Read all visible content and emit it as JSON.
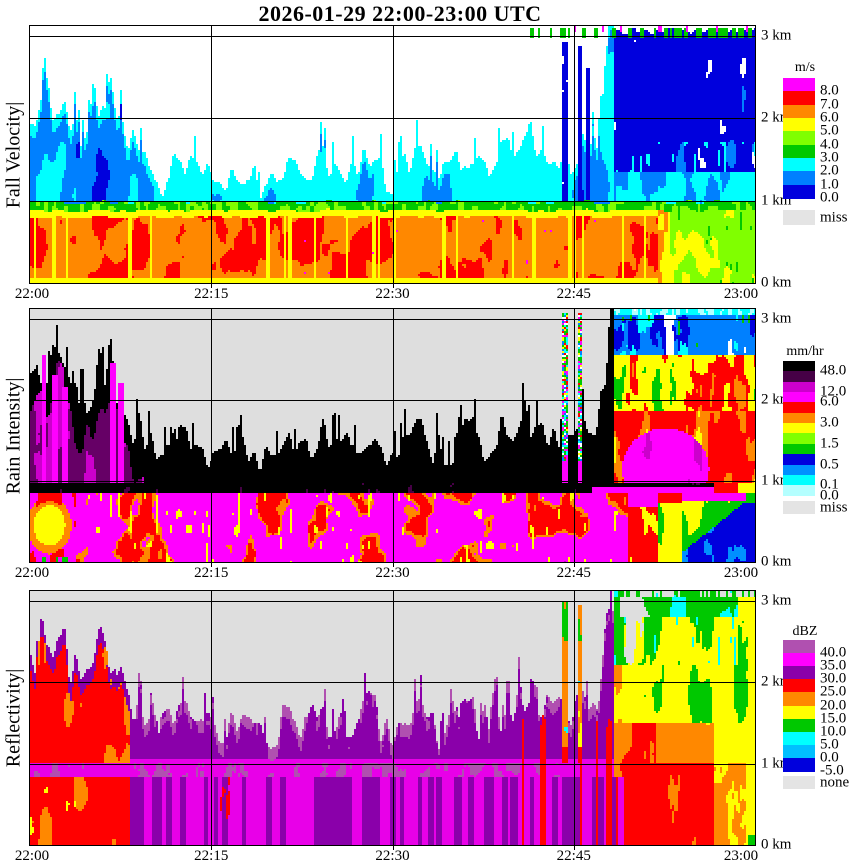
{
  "title": "2026-01-29  22:00-23:00 UTC",
  "palette": {
    "white": "#ffffff",
    "gray": "#dedede",
    "black": "#000000",
    "magenta": "#ff00ff",
    "brightmagenta": "#e800e8",
    "orchid": "#cc00cc",
    "purplecore": "#660066",
    "darkpurple": "#460046",
    "plum": "#b050b0",
    "violet": "#8a00aa",
    "red": "#ff0000",
    "orange": "#ff8800",
    "yellow": "#ffff00",
    "chartreuse": "#80ff00",
    "green": "#00c800",
    "cyan": "#00ffff",
    "palecyan": "#b4ffff",
    "dodger": "#0080ff",
    "skyblue": "#0090ff",
    "deepsky": "#00bfff",
    "blue": "#0000dd",
    "missgray": "#e4e4e4"
  },
  "chart_data": [
    {
      "type": "heatmap",
      "title": "Fall Velocity",
      "ylabel": "Fall Velocity|",
      "x_ticks": [
        {
          "minute": 0,
          "label": "22:00"
        },
        {
          "minute": 15,
          "label": "22:15"
        },
        {
          "minute": 30,
          "label": "22:30"
        },
        {
          "minute": 45,
          "label": "22:45"
        },
        {
          "minute": 60,
          "label": "23:00"
        }
      ],
      "y_ticks": [
        {
          "km": 0,
          "label": "0 km"
        },
        {
          "km": 1,
          "label": "1 km"
        },
        {
          "km": 2,
          "label": "2 km"
        },
        {
          "km": 3,
          "label": "3 km"
        }
      ],
      "y_range_km": [
        0,
        3.12
      ],
      "colorbar": {
        "units": "m/s",
        "cells": [
          "#ff00ff",
          "#ff0000",
          "#ff8800",
          "#ffff00",
          "#80ff00",
          "#00c800",
          "#00ffff",
          "#0080ff",
          "#0000dd"
        ],
        "tick_labels": [
          {
            "text": "8.0",
            "boundary": 1
          },
          {
            "text": "7.0",
            "boundary": 2
          },
          {
            "text": "6.0",
            "boundary": 3
          },
          {
            "text": "5.0",
            "boundary": 4
          },
          {
            "text": "4.0",
            "boundary": 5
          },
          {
            "text": "3.0",
            "boundary": 6
          },
          {
            "text": "2.0",
            "boundary": 7
          },
          {
            "text": "1.0",
            "boundary": 8
          },
          {
            "text": "0.0",
            "boundary": 9
          }
        ],
        "missing": {
          "label": "miss",
          "color": "#e4e4e4"
        }
      },
      "features": {
        "band_top_km": 0.86,
        "melting_layer_top_km": 0.96,
        "echo_top_km": [
          1.9,
          2.45,
          2.2,
          2.1,
          1.85,
          1.95,
          2.4,
          2.25,
          1.7,
          1.45,
          1.3,
          1.2,
          1.35,
          1.45,
          1.3,
          1.2,
          1.15,
          1.3,
          1.25,
          1.15,
          1.2,
          1.35,
          1.3,
          1.2,
          1.45,
          1.3,
          1.2,
          1.35,
          1.5,
          1.3,
          1.2,
          1.45,
          1.6,
          1.35,
          1.2,
          1.3,
          1.5,
          1.35,
          1.3,
          1.45,
          1.5,
          1.75,
          1.55,
          1.4,
          1.55,
          1.5,
          1.6,
          1.5,
          3.0,
          3.05,
          3.05,
          3.0,
          3.05,
          3.05,
          3.0,
          3.05,
          3.05,
          3.0,
          3.05,
          3.05
        ],
        "columns": [
          {
            "t0": 43.95,
            "t1": 44.55,
            "top_km": 2.92
          },
          {
            "t0": 45.35,
            "t1": 45.75,
            "top_km": 2.88
          },
          {
            "t0": 45.95,
            "t1": 46.3,
            "top_km": 2.6
          }
        ],
        "broad_echo_start_min": 48.3,
        "surface_transition_min": [
          51.9,
          53.0
        ]
      }
    },
    {
      "type": "heatmap",
      "title": "Rain Intensity",
      "ylabel": "Rain Intensity|",
      "x_ticks": [
        {
          "minute": 0,
          "label": "22:00"
        },
        {
          "minute": 15,
          "label": "22:15"
        },
        {
          "minute": 30,
          "label": "22:30"
        },
        {
          "minute": 45,
          "label": "22:45"
        },
        {
          "minute": 60,
          "label": "23:00"
        }
      ],
      "y_ticks": [
        {
          "km": 0,
          "label": "0 km"
        },
        {
          "km": 1,
          "label": "1 km"
        },
        {
          "km": 2,
          "label": "2 km"
        },
        {
          "km": 3,
          "label": "3 km"
        }
      ],
      "y_range_km": [
        0,
        3.12
      ],
      "colorbar": {
        "units": "mm/hr",
        "cells": [
          "#000000",
          "#460046",
          "#cc00cc",
          "#ff00ff",
          "#ff0000",
          "#ff8800",
          "#ffff00",
          "#80ff00",
          "#00c800",
          "#0000dd",
          "#0090ff",
          "#00ffff",
          "#b4ffff"
        ],
        "tick_labels": [
          {
            "text": "48.0",
            "boundary": 1
          },
          {
            "text": "12.0",
            "boundary": 3
          },
          {
            "text": "6.0",
            "boundary": 4
          },
          {
            "text": "3.0",
            "boundary": 6
          },
          {
            "text": "1.5",
            "boundary": 8
          },
          {
            "text": "0.5",
            "boundary": 10
          },
          {
            "text": "0.1",
            "boundary": 12
          },
          {
            "text": "0.0",
            "boundary": 13
          }
        ],
        "missing": {
          "label": "miss",
          "color": "#e4e4e4"
        }
      },
      "features": {
        "band_top_km": 0.84,
        "black_layer_top_km": 0.97,
        "echo_top_km": [
          2.0,
          2.5,
          2.3,
          2.2,
          1.9,
          2.0,
          2.45,
          2.3,
          1.75,
          1.55,
          1.4,
          1.3,
          1.45,
          1.5,
          1.4,
          1.3,
          1.25,
          1.4,
          1.3,
          1.25,
          1.3,
          1.45,
          1.4,
          1.3,
          1.55,
          1.4,
          1.3,
          1.45,
          1.6,
          1.4,
          1.3,
          1.55,
          1.7,
          1.45,
          1.3,
          1.4,
          1.6,
          1.45,
          1.4,
          1.55,
          1.6,
          1.85,
          1.65,
          1.5,
          1.6,
          1.55,
          1.65,
          1.55,
          3.1,
          3.1,
          3.1,
          3.1,
          3.1,
          3.1,
          3.1,
          3.1,
          3.1,
          3.1,
          3.1,
          3.1
        ],
        "core_top_km": [
          1.55,
          2.05,
          1.9,
          1.8,
          1.5,
          1.55,
          1.95,
          1.85,
          1.25,
          0.95
        ],
        "spikes": [
          {
            "t": 1.15,
            "top_km": 2.55
          },
          {
            "t": 2.05,
            "top_km": 2.3
          },
          {
            "t": 2.9,
            "top_km": 2.15
          },
          {
            "t": 6.85,
            "top_km": 2.45
          },
          {
            "t": 7.55,
            "top_km": 2.2
          }
        ],
        "columns": [
          {
            "t0": 43.95,
            "t1": 44.55,
            "top_km": 3.08
          },
          {
            "t0": 45.35,
            "t1": 45.75,
            "top_km": 3.08
          }
        ],
        "broad_echo_start_min": 48.3
      }
    },
    {
      "type": "heatmap",
      "title": "Reflectivity",
      "ylabel": "Reflectivity|",
      "x_ticks": [
        {
          "minute": 0,
          "label": "22:00"
        },
        {
          "minute": 15,
          "label": "22:15"
        },
        {
          "minute": 30,
          "label": "22:30"
        },
        {
          "minute": 45,
          "label": "22:45"
        },
        {
          "minute": 60,
          "label": "23:00"
        }
      ],
      "y_ticks": [
        {
          "km": 0,
          "label": "0 km"
        },
        {
          "km": 1,
          "label": "1 km"
        },
        {
          "km": 2,
          "label": "2 km"
        },
        {
          "km": 3,
          "label": "3 km"
        }
      ],
      "y_range_km": [
        0,
        3.12
      ],
      "colorbar": {
        "units": "dBZ",
        "cells": [
          "#b050b0",
          "#ff00ff",
          "#8a00aa",
          "#ff0000",
          "#ff8800",
          "#ffff00",
          "#00c800",
          "#00ffff",
          "#00bfff",
          "#0000dd"
        ],
        "tick_labels": [
          {
            "text": "40.0",
            "boundary": 1
          },
          {
            "text": "35.0",
            "boundary": 2
          },
          {
            "text": "30.0",
            "boundary": 3
          },
          {
            "text": "25.0",
            "boundary": 4
          },
          {
            "text": "20.0",
            "boundary": 5
          },
          {
            "text": "15.0",
            "boundary": 6
          },
          {
            "text": "10.0",
            "boundary": 7
          },
          {
            "text": "5.0",
            "boundary": 8
          },
          {
            "text": "0.0",
            "boundary": 9
          },
          {
            "text": "-5.0",
            "boundary": 10
          }
        ],
        "missing": {
          "label": "none",
          "color": "#e4e4e4"
        }
      },
      "features": {
        "band_top_km": 0.84,
        "bright_band_top_km": 1.0,
        "echo_top_km": [
          2.1,
          2.6,
          2.4,
          2.3,
          2.0,
          2.1,
          2.55,
          2.4,
          1.85,
          1.6,
          1.45,
          1.35,
          1.5,
          1.55,
          1.45,
          1.35,
          1.3,
          1.45,
          1.35,
          1.3,
          1.35,
          1.5,
          1.45,
          1.35,
          1.6,
          1.45,
          1.35,
          1.5,
          1.65,
          1.45,
          1.35,
          1.6,
          1.75,
          1.5,
          1.35,
          1.45,
          1.65,
          1.5,
          1.45,
          1.6,
          1.65,
          1.9,
          1.7,
          1.55,
          1.65,
          1.6,
          1.7,
          1.6,
          3.1,
          3.1,
          3.1,
          3.1,
          3.1,
          3.1,
          3.1,
          3.1,
          3.1,
          3.1,
          3.1,
          3.1
        ],
        "columns": [
          {
            "t0": 43.95,
            "t1": 44.55,
            "top_km": 3.0
          },
          {
            "t0": 45.35,
            "t1": 45.75,
            "top_km": 2.95
          }
        ],
        "broad_echo_start_min": 48.3,
        "surface_transition_min": [
          56.6,
          59.2
        ]
      }
    }
  ]
}
